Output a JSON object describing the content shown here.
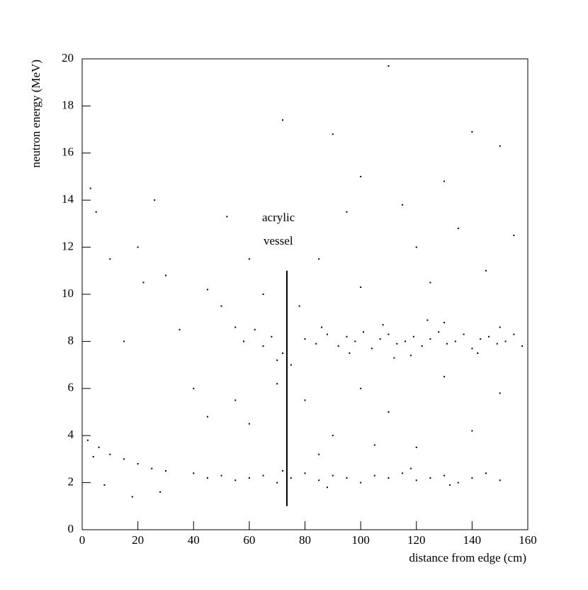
{
  "chart_data": {
    "type": "scatter",
    "xlabel": "distance from edge (cm)",
    "ylabel": "neutron energy (MeV)",
    "annotation": [
      "acrylic",
      "vessel"
    ],
    "xlim": [
      0,
      160
    ],
    "ylim": [
      0,
      20
    ],
    "xticks": [
      0,
      20,
      40,
      60,
      80,
      100,
      120,
      140,
      160
    ],
    "yticks": [
      0,
      2,
      4,
      6,
      8,
      10,
      12,
      14,
      16,
      18,
      20
    ],
    "color": "#000000",
    "vline": {
      "x": 73.5,
      "y": [
        1,
        11
      ]
    },
    "x": [
      80,
      84,
      88,
      92,
      95,
      98,
      101,
      104,
      107,
      110,
      113,
      116,
      119,
      122,
      125,
      128,
      131,
      134,
      137,
      140,
      143,
      146,
      149,
      152,
      155,
      158,
      86,
      96,
      108,
      118,
      130,
      142,
      150,
      124,
      112,
      65,
      70,
      72,
      68,
      62,
      75,
      58,
      55,
      40,
      45,
      50,
      55,
      60,
      65,
      70,
      75,
      80,
      85,
      90,
      95,
      100,
      105,
      110,
      115,
      120,
      125,
      130,
      135,
      140,
      145,
      150,
      88,
      118,
      132,
      72,
      2,
      6,
      10,
      15,
      20,
      25,
      30,
      8,
      18,
      28,
      4,
      50,
      45,
      30,
      20,
      10,
      5,
      3,
      26,
      52,
      72,
      110,
      100,
      140,
      130,
      150,
      155,
      120,
      85,
      95,
      60,
      80,
      90,
      100,
      110,
      120,
      130,
      140,
      150,
      85,
      105,
      70,
      55,
      40,
      35,
      22,
      15,
      65,
      78,
      100,
      125,
      145,
      115,
      135,
      90,
      60,
      45
    ],
    "values": [
      8.1,
      7.9,
      8.3,
      7.8,
      8.2,
      8.0,
      8.4,
      7.7,
      8.1,
      8.3,
      7.9,
      8.0,
      8.2,
      7.8,
      8.1,
      8.4,
      7.9,
      8.0,
      8.3,
      7.7,
      8.1,
      8.2,
      7.9,
      8.0,
      8.3,
      7.8,
      8.6,
      7.5,
      8.7,
      7.4,
      8.8,
      7.5,
      8.6,
      8.9,
      7.3,
      7.8,
      7.2,
      7.5,
      8.2,
      8.5,
      7.0,
      8.0,
      8.6,
      2.4,
      2.2,
      2.3,
      2.1,
      2.2,
      2.3,
      2.0,
      2.2,
      2.4,
      2.1,
      2.3,
      2.2,
      2.0,
      2.3,
      2.2,
      2.4,
      2.1,
      2.2,
      2.3,
      2.0,
      2.2,
      2.4,
      2.1,
      1.8,
      2.6,
      1.9,
      2.5,
      3.8,
      3.5,
      3.2,
      3.0,
      2.8,
      2.6,
      2.5,
      1.9,
      1.4,
      1.6,
      3.1,
      9.5,
      10.2,
      10.8,
      12.0,
      11.5,
      13.5,
      14.5,
      14.0,
      13.3,
      17.4,
      19.7,
      15.0,
      16.9,
      14.8,
      16.3,
      12.5,
      12.0,
      11.5,
      13.5,
      4.5,
      5.5,
      4.0,
      6.0,
      5.0,
      3.5,
      6.5,
      4.2,
      5.8,
      3.2,
      3.6,
      6.2,
      5.5,
      6.0,
      8.5,
      10.5,
      8.0,
      10.0,
      9.5,
      10.3,
      10.5,
      11.0,
      13.8,
      12.8,
      16.8,
      11.5,
      4.8
    ]
  }
}
